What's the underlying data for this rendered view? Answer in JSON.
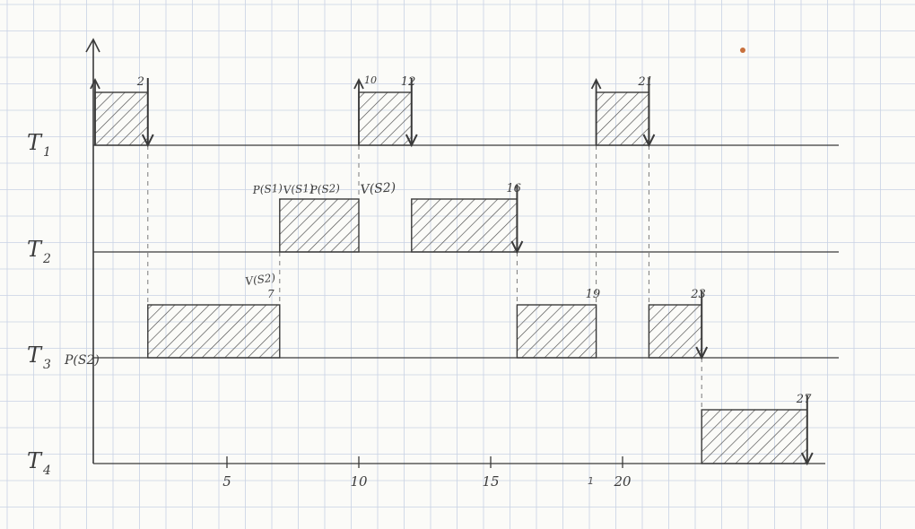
{
  "tasks": [
    {
      "name": "T1",
      "label_main": "T",
      "label_sub": "1"
    },
    {
      "name": "T2",
      "label_main": "T",
      "label_sub": "2"
    },
    {
      "name": "T3",
      "label_main": "T",
      "label_sub": "3"
    },
    {
      "name": "T4",
      "label_main": "T",
      "label_sub": "4"
    }
  ],
  "axis_ticks": [
    {
      "value": 5,
      "label": "5"
    },
    {
      "value": 10,
      "label": "10"
    },
    {
      "value": 15,
      "label": "15"
    },
    {
      "value": 20,
      "label": "20"
    }
  ],
  "blocks": [
    {
      "task": 0,
      "start": 0,
      "end": 2,
      "end_label": "2",
      "start_arrow": true,
      "end_arrow": true
    },
    {
      "task": 0,
      "start": 10,
      "end": 12,
      "start_label": "10",
      "end_label": "12",
      "start_arrow": true,
      "end_arrow": true
    },
    {
      "task": 0,
      "start": 19,
      "end": 21,
      "end_label": "21",
      "start_arrow": true,
      "end_arrow": true
    },
    {
      "task": 1,
      "start": 7,
      "end": 10
    },
    {
      "task": 1,
      "start": 12,
      "end": 16,
      "end_label": "16",
      "end_arrow": true
    },
    {
      "task": 2,
      "start": 2,
      "end": 7
    },
    {
      "task": 2,
      "start": 16,
      "end": 19,
      "end_label": "19"
    },
    {
      "task": 2,
      "start": 21,
      "end": 23,
      "end_label": "23",
      "end_arrow": true
    },
    {
      "task": 3,
      "start": 23,
      "end": 27,
      "end_label": "27",
      "end_arrow": true
    }
  ],
  "dashed_links": [
    {
      "at": 2,
      "from_task": 0,
      "to_task": 2
    },
    {
      "at": 7,
      "from_task": 1,
      "to_task": 2
    },
    {
      "at": 10,
      "from_task": 0,
      "to_task": 1
    },
    {
      "at": 16,
      "from_task": 1,
      "to_task": 2
    },
    {
      "at": 19,
      "from_task": 0,
      "to_task": 2
    },
    {
      "at": 21,
      "from_task": 0,
      "to_task": 2
    },
    {
      "at": 23,
      "from_task": 2,
      "to_task": 3
    }
  ],
  "annotations": {
    "p_s1": "P(S1)",
    "v_s1": "V(S1)",
    "p_s2_t2": "P(S2)",
    "v_s2_t2": "V(S2)",
    "v_s2_t3": "V(S2)",
    "seven": "7",
    "p_s2_t3": "P(S2)"
  },
  "stray_mark": "1",
  "colors": {
    "ink": "#3a3a3a",
    "grid": "#c9d2e4",
    "dash": "#7a7a7a",
    "hatch": "#4a4a4a",
    "dot": "#c8703c"
  }
}
